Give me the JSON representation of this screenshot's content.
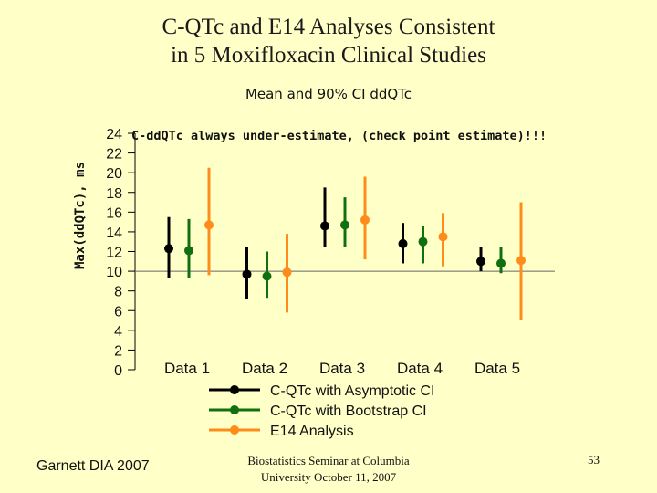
{
  "slide": {
    "title_line1": "C-QTc and E14 Analyses Consistent",
    "title_line2": "in 5 Moxifloxacin Clinical Studies",
    "footer_left": "Garnett DIA 2007",
    "footer_center_line1": "Biostatistics Seminar at Columbia",
    "footer_center_line2": "University October 11, 2007",
    "page_number": "53"
  },
  "chart_data": {
    "type": "scatter",
    "title": "Mean and 90% CI ddQTc",
    "ylabel": "Max(ddQTc), ms",
    "xlabel": "",
    "annotation": "C-ddQTc always under-estimate, (check point estimate)!!!",
    "ylim": [
      0,
      24
    ],
    "yticks": [
      0,
      2,
      4,
      6,
      8,
      10,
      12,
      14,
      16,
      18,
      20,
      22,
      24
    ],
    "reference_line": 10,
    "categories": [
      "Data 1",
      "Data 2",
      "Data 3",
      "Data 4",
      "Data 5"
    ],
    "legend_position": "bottom",
    "series": [
      {
        "name": "C-QTc with Asymptotic CI",
        "color": "#000000",
        "points": [
          {
            "est": 12.3,
            "low": 9.3,
            "high": 15.5
          },
          {
            "est": 9.7,
            "low": 7.2,
            "high": 12.5
          },
          {
            "est": 14.6,
            "low": 12.5,
            "high": 18.5
          },
          {
            "est": 12.8,
            "low": 10.8,
            "high": 14.9
          },
          {
            "est": 11.0,
            "low": 10.0,
            "high": 12.5
          }
        ]
      },
      {
        "name": "C-QTc with Bootstrap CI",
        "color": "#107010",
        "points": [
          {
            "est": 12.1,
            "low": 9.3,
            "high": 15.3
          },
          {
            "est": 9.5,
            "low": 7.3,
            "high": 12.0
          },
          {
            "est": 14.7,
            "low": 12.5,
            "high": 17.5
          },
          {
            "est": 13.0,
            "low": 10.8,
            "high": 14.6
          },
          {
            "est": 10.8,
            "low": 9.8,
            "high": 12.5
          }
        ]
      },
      {
        "name": "E14 Analysis",
        "color": "#ff8c1a",
        "points": [
          {
            "est": 14.7,
            "low": 9.6,
            "high": 20.5
          },
          {
            "est": 9.9,
            "low": 5.8,
            "high": 13.8
          },
          {
            "est": 15.2,
            "low": 11.2,
            "high": 19.6
          },
          {
            "est": 13.5,
            "low": 10.5,
            "high": 15.9
          },
          {
            "est": 11.1,
            "low": 5.0,
            "high": 17.0
          }
        ]
      }
    ]
  }
}
